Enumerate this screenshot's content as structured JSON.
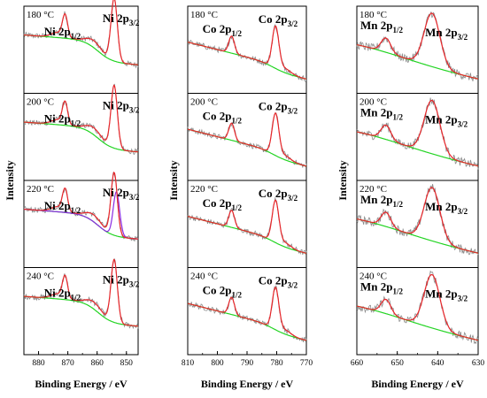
{
  "ylabel": "Intensity",
  "xlabel": "Binding  Energy / eV",
  "temperatures": [
    "180 °C",
    "200 °C",
    "220 °C",
    "240 °C"
  ],
  "colors": {
    "raw": "#8a8a8a",
    "fit": "#e8262a",
    "background": "#22d422",
    "component": "#8a2be2"
  },
  "chart_data": [
    {
      "type": "line",
      "element": "Ni",
      "xlabel": "Binding  Energy / eV",
      "ylabel": "Intensity",
      "xlim": [
        885,
        846
      ],
      "xticks": [
        880,
        870,
        860,
        850
      ],
      "peak_labels": [
        {
          "main": "Ni 2p",
          "sub": "1/2",
          "energy": 871.5
        },
        {
          "main": "Ni 2p",
          "sub": "3/2",
          "energy": 854.5
        }
      ],
      "series": [
        {
          "temperature": "180 °C",
          "peaks": [
            871.5,
            854.5
          ]
        },
        {
          "temperature": "200 °C",
          "peaks": [
            871.5,
            854.5
          ]
        },
        {
          "temperature": "220 °C",
          "peaks": [
            871.5,
            854.5
          ],
          "component_peak": 853.6
        },
        {
          "temperature": "240 °C",
          "peaks": [
            871.5,
            854.5
          ]
        }
      ]
    },
    {
      "type": "line",
      "element": "Co",
      "xlabel": "Binding  Energy / eV",
      "ylabel": "Intensity",
      "xlim": [
        810,
        770
      ],
      "xticks": [
        810,
        800,
        790,
        780,
        770
      ],
      "peak_labels": [
        {
          "main": "Co 2p",
          "sub": "1/2",
          "energy": 795.5
        },
        {
          "main": "Co 2p",
          "sub": "3/2",
          "energy": 780.2
        }
      ],
      "series": [
        {
          "temperature": "180 °C",
          "peaks": [
            795.5,
            780.2
          ]
        },
        {
          "temperature": "200 °C",
          "peaks": [
            795.5,
            780.2
          ]
        },
        {
          "temperature": "220 °C",
          "peaks": [
            795.5,
            780.2
          ]
        },
        {
          "temperature": "240 °C",
          "peaks": [
            795.5,
            780.2
          ]
        }
      ]
    },
    {
      "type": "line",
      "element": "Mn",
      "xlabel": "Binding  Energy / eV",
      "ylabel": "Intensity",
      "xlim": [
        660,
        630
      ],
      "xticks": [
        660,
        650,
        640,
        630
      ],
      "peak_labels": [
        {
          "main": "Mn 2p",
          "sub": "1/2",
          "energy": 653.0
        },
        {
          "main": "Mn 2p",
          "sub": "3/2",
          "energy": 641.8
        }
      ],
      "series": [
        {
          "temperature": "180 °C",
          "peaks": [
            653.0,
            641.8
          ]
        },
        {
          "temperature": "200 °C",
          "peaks": [
            653.0,
            641.8
          ]
        },
        {
          "temperature": "220 °C",
          "peaks": [
            653.0,
            641.8
          ]
        },
        {
          "temperature": "240 °C",
          "peaks": [
            653.0,
            641.8
          ]
        }
      ]
    }
  ]
}
